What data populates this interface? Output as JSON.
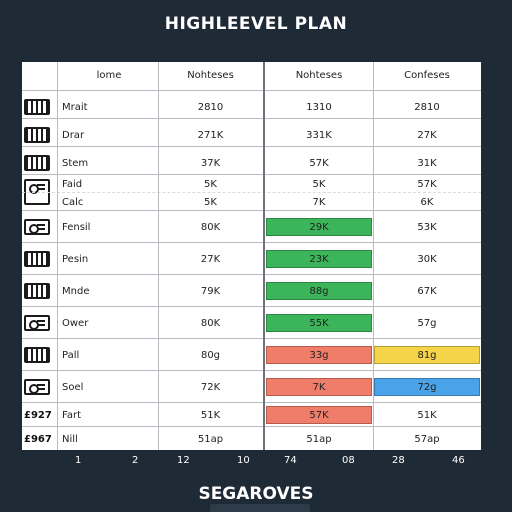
{
  "title": "HIGHLEEVEL PLAN",
  "footer": "SEGAROVES",
  "headers": [
    "lome",
    "Nohteses",
    "Nohteses",
    "Confeses"
  ],
  "rows": [
    {
      "name": "Mrait",
      "c1": "2810",
      "c2": "1310",
      "c3": "2810"
    },
    {
      "name": "Drar",
      "c1": "271K",
      "c2": "331K",
      "c3": "27K"
    },
    {
      "name": "Stem",
      "c1": "37K",
      "c2": "57K",
      "c3": "31K"
    },
    {
      "name": "Faid",
      "c1": "5K",
      "c2": "5K",
      "c3": "57K"
    },
    {
      "name": "Calc",
      "c1": "5K",
      "c2": "7K",
      "c3": "6K"
    },
    {
      "name": "Fensil",
      "c1": "80K",
      "c2": "29K",
      "c3": "53K"
    },
    {
      "name": "Pesin",
      "c1": "27K",
      "c2": "23K",
      "c3": "30K"
    },
    {
      "name": "Mnde",
      "c1": "79K",
      "c2": "88g",
      "c3": "67K"
    },
    {
      "name": "Ower",
      "c1": "80K",
      "c2": "55K",
      "c3": "57g"
    },
    {
      "name": "Pall",
      "c1": "80g",
      "c2": "33g",
      "c3": "81g"
    },
    {
      "name": "Soel",
      "c1": "72K",
      "c2": "7K",
      "c3": "72g"
    },
    {
      "name": "Fart",
      "c1": "51K",
      "c2": "57K",
      "c3": "51K"
    },
    {
      "name": "Nill",
      "c1": "51ap",
      "c2": "51ap",
      "c3": "57ap"
    }
  ],
  "codes": [
    "£927",
    "£967"
  ],
  "axis_labels": [
    "1",
    "2",
    "12",
    "10",
    "74",
    "08",
    "28",
    "46"
  ],
  "colors": {
    "green": "#3cb55a",
    "red": "#f07c6a",
    "yellow": "#f5d44a",
    "blue": "#4aa3e8"
  },
  "icons": [
    "table-icon",
    "printer-icon"
  ]
}
